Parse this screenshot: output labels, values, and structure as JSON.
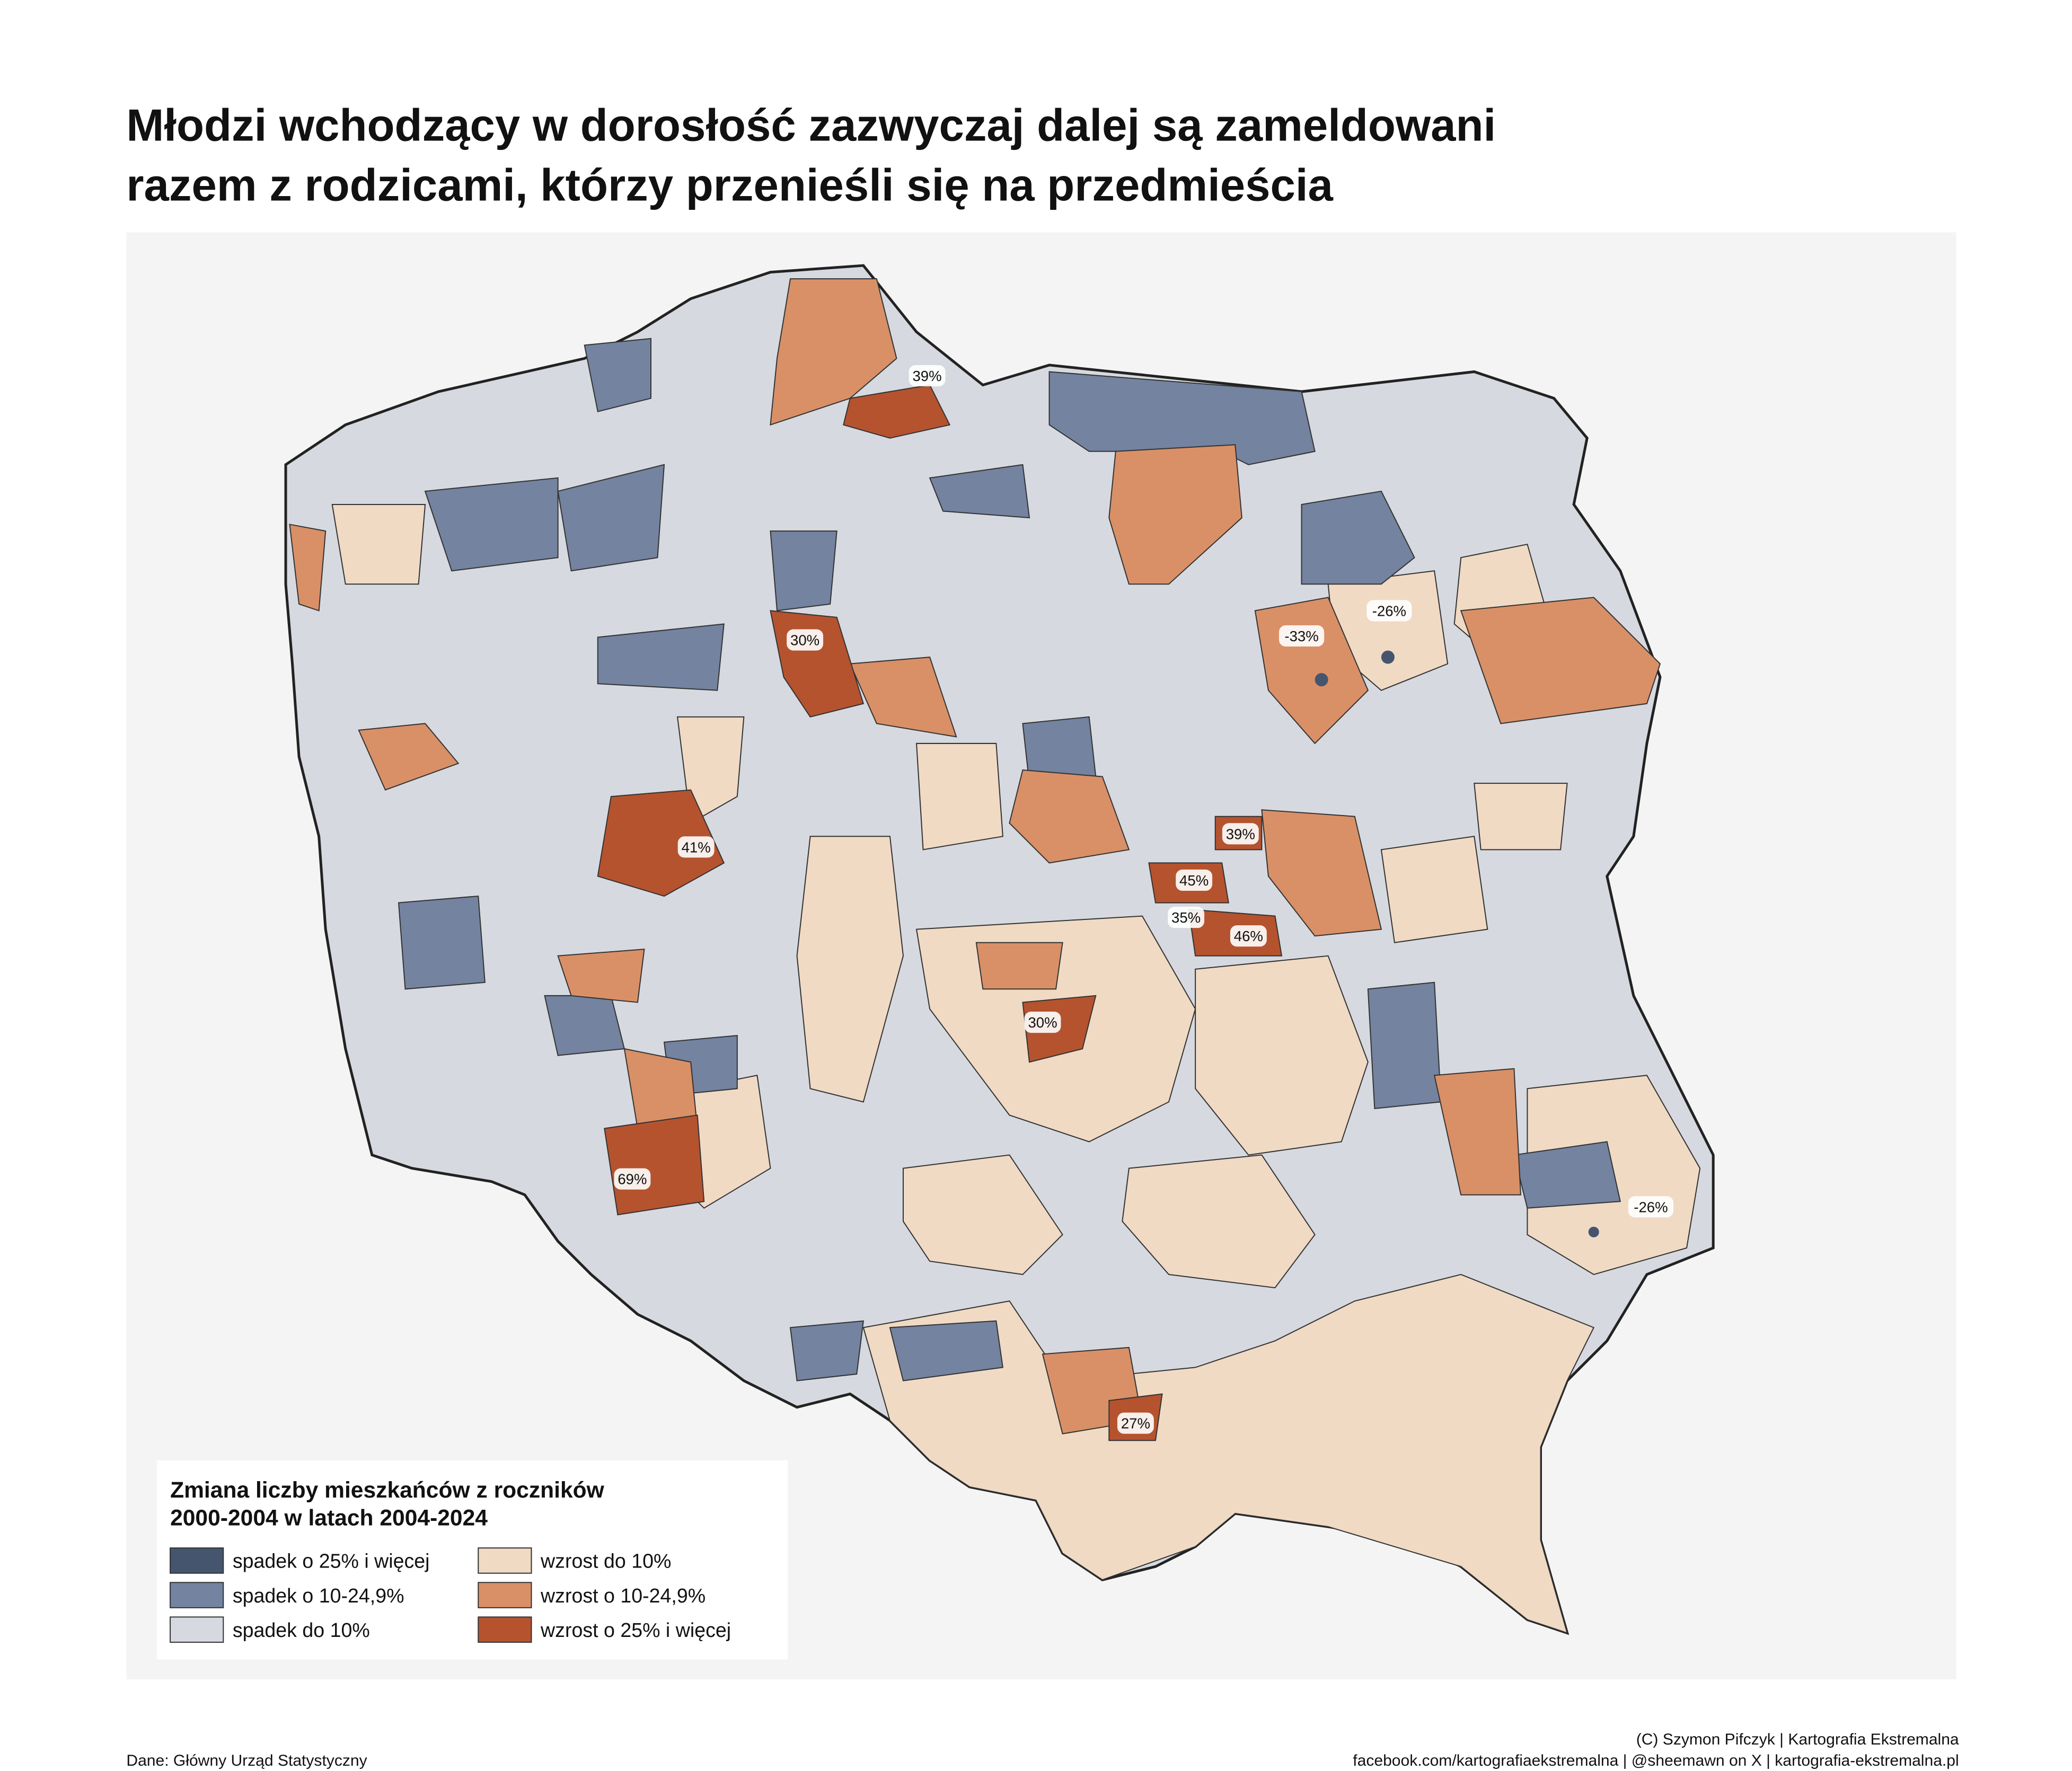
{
  "header": {
    "title_lines": [
      "Młodzi wchodzący w dorosłość zazwyczaj dalej są zameldowani",
      "razem z rodzicami, którzy przenieśli się na przedmieścia"
    ]
  },
  "annotations": [
    {
      "label": "39%"
    },
    {
      "label": "30%"
    },
    {
      "label": "-26%"
    },
    {
      "label": "-33%"
    },
    {
      "label": "41%"
    },
    {
      "label": "39%"
    },
    {
      "label": "45%"
    },
    {
      "label": "35%"
    },
    {
      "label": "46%"
    },
    {
      "label": "30%"
    },
    {
      "label": "69%"
    },
    {
      "label": "-26%"
    },
    {
      "label": "27%"
    }
  ],
  "legend": {
    "title_lines": [
      "Zmiana liczby mieszkańców z roczników",
      "2000-2004 w latach 2004-2024"
    ],
    "items": [
      {
        "label": "spadek o 25% i więcej",
        "color": "#46556e"
      },
      {
        "label": "spadek o 10-24,9%",
        "color": "#7383a0"
      },
      {
        "label": "spadek do 10%",
        "color": "#d6d9df"
      },
      {
        "label": "wzrost do 10%",
        "color": "#f0dac4"
      },
      {
        "label": "wzrost o 10-24,9%",
        "color": "#d99067"
      },
      {
        "label": "wzrost o 25% i więcej",
        "color": "#b5532f"
      }
    ]
  },
  "footer": {
    "source": "Dane: Główny Urząd Statystyczny",
    "credits": [
      "(C) Szymon Pifczyk | Kartografia Ekstremalna",
      "facebook.com/kartografiaekstremalna | @sheemawn on X | kartografia-ekstremalna.pl"
    ]
  }
}
